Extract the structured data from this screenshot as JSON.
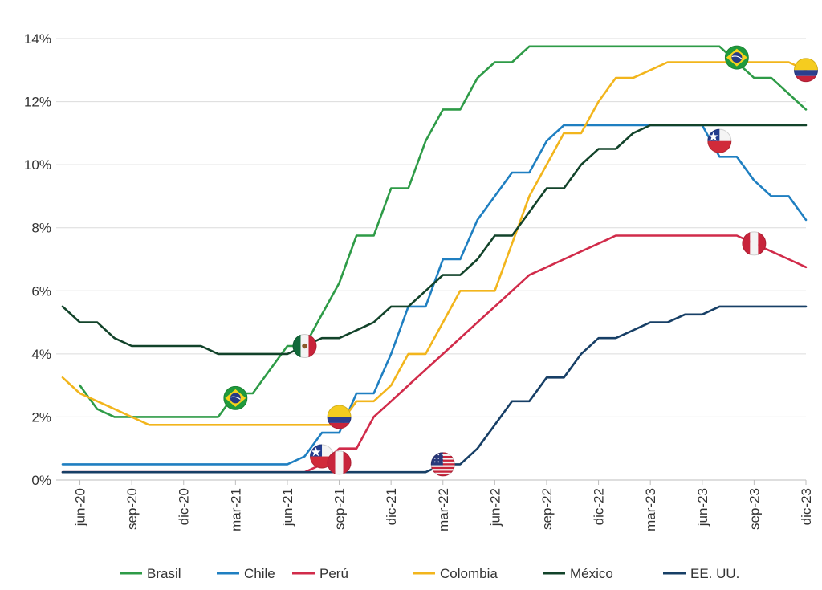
{
  "chart_data": {
    "type": "line",
    "title": "",
    "xlabel": "",
    "ylabel": "",
    "ylim": [
      0,
      14
    ],
    "y_ticks": [
      "0%",
      "2%",
      "4%",
      "6%",
      "8%",
      "10%",
      "12%",
      "14%"
    ],
    "y_tick_values": [
      0,
      2,
      4,
      6,
      8,
      10,
      12,
      14
    ],
    "x_range": [
      "2020-05",
      "2023-12"
    ],
    "x_ticks": [
      "jun-20",
      "sep-20",
      "dic-20",
      "mar-21",
      "jun-21",
      "sep-21",
      "dic-21",
      "mar-22",
      "jun-22",
      "sep-22",
      "dic-22",
      "mar-23",
      "jun-23",
      "sep-23",
      "dic-23"
    ],
    "x_tick_months": [
      "2020-06",
      "2020-09",
      "2020-12",
      "2021-03",
      "2021-06",
      "2021-09",
      "2021-12",
      "2022-03",
      "2022-06",
      "2022-09",
      "2022-12",
      "2023-03",
      "2023-06",
      "2023-09",
      "2023-12"
    ],
    "grid": "horizontal",
    "legend_position": "bottom",
    "series": [
      {
        "name": "Brasil",
        "color": "#2e9b47",
        "flag": "brazil-flag",
        "points": [
          [
            "2020-06",
            3.0
          ],
          [
            "2020-07",
            2.25
          ],
          [
            "2020-08",
            2.0
          ],
          [
            "2020-09",
            2.0
          ],
          [
            "2020-10",
            2.0
          ],
          [
            "2020-11",
            2.0
          ],
          [
            "2020-12",
            2.0
          ],
          [
            "2021-01",
            2.0
          ],
          [
            "2021-02",
            2.0
          ],
          [
            "2021-03",
            2.75
          ],
          [
            "2021-04",
            2.75
          ],
          [
            "2021-05",
            3.5
          ],
          [
            "2021-06",
            4.25
          ],
          [
            "2021-07",
            4.25
          ],
          [
            "2021-08",
            5.25
          ],
          [
            "2021-09",
            6.25
          ],
          [
            "2021-10",
            7.75
          ],
          [
            "2021-11",
            7.75
          ],
          [
            "2021-12",
            9.25
          ],
          [
            "2022-01",
            9.25
          ],
          [
            "2022-02",
            10.75
          ],
          [
            "2022-03",
            11.75
          ],
          [
            "2022-04",
            11.75
          ],
          [
            "2022-05",
            12.75
          ],
          [
            "2022-06",
            13.25
          ],
          [
            "2022-07",
            13.25
          ],
          [
            "2022-08",
            13.75
          ],
          [
            "2022-09",
            13.75
          ],
          [
            "2022-10",
            13.75
          ],
          [
            "2022-11",
            13.75
          ],
          [
            "2022-12",
            13.75
          ],
          [
            "2023-01",
            13.75
          ],
          [
            "2023-02",
            13.75
          ],
          [
            "2023-03",
            13.75
          ],
          [
            "2023-04",
            13.75
          ],
          [
            "2023-05",
            13.75
          ],
          [
            "2023-06",
            13.75
          ],
          [
            "2023-07",
            13.75
          ],
          [
            "2023-08",
            13.25
          ],
          [
            "2023-09",
            12.75
          ],
          [
            "2023-10",
            12.75
          ],
          [
            "2023-11",
            12.25
          ],
          [
            "2023-12",
            11.75
          ]
        ]
      },
      {
        "name": "Chile",
        "color": "#1f7fc1",
        "flag": "chile-flag",
        "points": [
          [
            "2020-05",
            0.5
          ],
          [
            "2020-06",
            0.5
          ],
          [
            "2020-07",
            0.5
          ],
          [
            "2020-08",
            0.5
          ],
          [
            "2020-09",
            0.5
          ],
          [
            "2020-10",
            0.5
          ],
          [
            "2020-11",
            0.5
          ],
          [
            "2020-12",
            0.5
          ],
          [
            "2021-01",
            0.5
          ],
          [
            "2021-02",
            0.5
          ],
          [
            "2021-03",
            0.5
          ],
          [
            "2021-04",
            0.5
          ],
          [
            "2021-05",
            0.5
          ],
          [
            "2021-06",
            0.5
          ],
          [
            "2021-07",
            0.75
          ],
          [
            "2021-08",
            1.5
          ],
          [
            "2021-09",
            1.5
          ],
          [
            "2021-10",
            2.75
          ],
          [
            "2021-11",
            2.75
          ],
          [
            "2021-12",
            4.0
          ],
          [
            "2022-01",
            5.5
          ],
          [
            "2022-02",
            5.5
          ],
          [
            "2022-03",
            7.0
          ],
          [
            "2022-04",
            7.0
          ],
          [
            "2022-05",
            8.25
          ],
          [
            "2022-06",
            9.0
          ],
          [
            "2022-07",
            9.75
          ],
          [
            "2022-08",
            9.75
          ],
          [
            "2022-09",
            10.75
          ],
          [
            "2022-10",
            11.25
          ],
          [
            "2022-11",
            11.25
          ],
          [
            "2022-12",
            11.25
          ],
          [
            "2023-01",
            11.25
          ],
          [
            "2023-02",
            11.25
          ],
          [
            "2023-03",
            11.25
          ],
          [
            "2023-04",
            11.25
          ],
          [
            "2023-05",
            11.25
          ],
          [
            "2023-06",
            11.25
          ],
          [
            "2023-07",
            10.25
          ],
          [
            "2023-08",
            10.25
          ],
          [
            "2023-09",
            9.5
          ],
          [
            "2023-10",
            9.0
          ],
          [
            "2023-11",
            9.0
          ],
          [
            "2023-12",
            8.25
          ]
        ]
      },
      {
        "name": "Perú",
        "color": "#d12b4a",
        "flag": "peru-flag",
        "points": [
          [
            "2020-05",
            0.25
          ],
          [
            "2020-06",
            0.25
          ],
          [
            "2020-07",
            0.25
          ],
          [
            "2020-08",
            0.25
          ],
          [
            "2020-09",
            0.25
          ],
          [
            "2020-10",
            0.25
          ],
          [
            "2020-11",
            0.25
          ],
          [
            "2020-12",
            0.25
          ],
          [
            "2021-01",
            0.25
          ],
          [
            "2021-02",
            0.25
          ],
          [
            "2021-03",
            0.25
          ],
          [
            "2021-04",
            0.25
          ],
          [
            "2021-05",
            0.25
          ],
          [
            "2021-06",
            0.25
          ],
          [
            "2021-07",
            0.25
          ],
          [
            "2021-08",
            0.5
          ],
          [
            "2021-09",
            1.0
          ],
          [
            "2021-10",
            1.0
          ],
          [
            "2021-11",
            2.0
          ],
          [
            "2021-12",
            2.5
          ],
          [
            "2022-01",
            3.0
          ],
          [
            "2022-02",
            3.5
          ],
          [
            "2022-03",
            4.0
          ],
          [
            "2022-04",
            4.5
          ],
          [
            "2022-05",
            5.0
          ],
          [
            "2022-06",
            5.5
          ],
          [
            "2022-07",
            6.0
          ],
          [
            "2022-08",
            6.5
          ],
          [
            "2022-09",
            6.75
          ],
          [
            "2022-10",
            7.0
          ],
          [
            "2022-11",
            7.25
          ],
          [
            "2022-12",
            7.5
          ],
          [
            "2023-01",
            7.75
          ],
          [
            "2023-02",
            7.75
          ],
          [
            "2023-03",
            7.75
          ],
          [
            "2023-04",
            7.75
          ],
          [
            "2023-05",
            7.75
          ],
          [
            "2023-06",
            7.75
          ],
          [
            "2023-07",
            7.75
          ],
          [
            "2023-08",
            7.75
          ],
          [
            "2023-09",
            7.5
          ],
          [
            "2023-10",
            7.25
          ],
          [
            "2023-11",
            7.0
          ],
          [
            "2023-12",
            6.75
          ]
        ]
      },
      {
        "name": "Colombia",
        "color": "#f2b51c",
        "flag": "colombia-flag",
        "points": [
          [
            "2020-05",
            3.25
          ],
          [
            "2020-06",
            2.75
          ],
          [
            "2020-07",
            2.5
          ],
          [
            "2020-08",
            2.25
          ],
          [
            "2020-09",
            2.0
          ],
          [
            "2020-10",
            1.75
          ],
          [
            "2020-11",
            1.75
          ],
          [
            "2020-12",
            1.75
          ],
          [
            "2021-01",
            1.75
          ],
          [
            "2021-02",
            1.75
          ],
          [
            "2021-03",
            1.75
          ],
          [
            "2021-04",
            1.75
          ],
          [
            "2021-05",
            1.75
          ],
          [
            "2021-06",
            1.75
          ],
          [
            "2021-07",
            1.75
          ],
          [
            "2021-08",
            1.75
          ],
          [
            "2021-09",
            1.75
          ],
          [
            "2021-10",
            2.5
          ],
          [
            "2021-11",
            2.5
          ],
          [
            "2021-12",
            3.0
          ],
          [
            "2022-01",
            4.0
          ],
          [
            "2022-02",
            4.0
          ],
          [
            "2022-03",
            5.0
          ],
          [
            "2022-04",
            6.0
          ],
          [
            "2022-05",
            6.0
          ],
          [
            "2022-06",
            6.0
          ],
          [
            "2022-07",
            7.5
          ],
          [
            "2022-08",
            9.0
          ],
          [
            "2022-09",
            10.0
          ],
          [
            "2022-10",
            11.0
          ],
          [
            "2022-11",
            11.0
          ],
          [
            "2022-12",
            12.0
          ],
          [
            "2023-01",
            12.75
          ],
          [
            "2023-02",
            12.75
          ],
          [
            "2023-03",
            13.0
          ],
          [
            "2023-04",
            13.25
          ],
          [
            "2023-05",
            13.25
          ],
          [
            "2023-06",
            13.25
          ],
          [
            "2023-07",
            13.25
          ],
          [
            "2023-08",
            13.25
          ],
          [
            "2023-09",
            13.25
          ],
          [
            "2023-10",
            13.25
          ],
          [
            "2023-11",
            13.25
          ],
          [
            "2023-12",
            13.0
          ]
        ]
      },
      {
        "name": "México",
        "color": "#12432a",
        "flag": "mexico-flag",
        "points": [
          [
            "2020-05",
            5.5
          ],
          [
            "2020-06",
            5.0
          ],
          [
            "2020-07",
            5.0
          ],
          [
            "2020-08",
            4.5
          ],
          [
            "2020-09",
            4.25
          ],
          [
            "2020-10",
            4.25
          ],
          [
            "2020-11",
            4.25
          ],
          [
            "2020-12",
            4.25
          ],
          [
            "2021-01",
            4.25
          ],
          [
            "2021-02",
            4.0
          ],
          [
            "2021-03",
            4.0
          ],
          [
            "2021-04",
            4.0
          ],
          [
            "2021-05",
            4.0
          ],
          [
            "2021-06",
            4.0
          ],
          [
            "2021-07",
            4.25
          ],
          [
            "2021-08",
            4.5
          ],
          [
            "2021-09",
            4.5
          ],
          [
            "2021-10",
            4.75
          ],
          [
            "2021-11",
            5.0
          ],
          [
            "2021-12",
            5.5
          ],
          [
            "2022-01",
            5.5
          ],
          [
            "2022-02",
            6.0
          ],
          [
            "2022-03",
            6.5
          ],
          [
            "2022-04",
            6.5
          ],
          [
            "2022-05",
            7.0
          ],
          [
            "2022-06",
            7.75
          ],
          [
            "2022-07",
            7.75
          ],
          [
            "2022-08",
            8.5
          ],
          [
            "2022-09",
            9.25
          ],
          [
            "2022-10",
            9.25
          ],
          [
            "2022-11",
            10.0
          ],
          [
            "2022-12",
            10.5
          ],
          [
            "2023-01",
            10.5
          ],
          [
            "2023-02",
            11.0
          ],
          [
            "2023-03",
            11.25
          ],
          [
            "2023-04",
            11.25
          ],
          [
            "2023-05",
            11.25
          ],
          [
            "2023-06",
            11.25
          ],
          [
            "2023-07",
            11.25
          ],
          [
            "2023-08",
            11.25
          ],
          [
            "2023-09",
            11.25
          ],
          [
            "2023-10",
            11.25
          ],
          [
            "2023-11",
            11.25
          ],
          [
            "2023-12",
            11.25
          ]
        ]
      },
      {
        "name": "EE. UU.",
        "color": "#173f66",
        "flag": "usa-flag",
        "points": [
          [
            "2020-05",
            0.25
          ],
          [
            "2020-06",
            0.25
          ],
          [
            "2020-07",
            0.25
          ],
          [
            "2020-08",
            0.25
          ],
          [
            "2020-09",
            0.25
          ],
          [
            "2020-10",
            0.25
          ],
          [
            "2020-11",
            0.25
          ],
          [
            "2020-12",
            0.25
          ],
          [
            "2021-01",
            0.25
          ],
          [
            "2021-02",
            0.25
          ],
          [
            "2021-03",
            0.25
          ],
          [
            "2021-04",
            0.25
          ],
          [
            "2021-05",
            0.25
          ],
          [
            "2021-06",
            0.25
          ],
          [
            "2021-07",
            0.25
          ],
          [
            "2021-08",
            0.25
          ],
          [
            "2021-09",
            0.25
          ],
          [
            "2021-10",
            0.25
          ],
          [
            "2021-11",
            0.25
          ],
          [
            "2021-12",
            0.25
          ],
          [
            "2022-01",
            0.25
          ],
          [
            "2022-02",
            0.25
          ],
          [
            "2022-03",
            0.5
          ],
          [
            "2022-04",
            0.5
          ],
          [
            "2022-05",
            1.0
          ],
          [
            "2022-06",
            1.75
          ],
          [
            "2022-07",
            2.5
          ],
          [
            "2022-08",
            2.5
          ],
          [
            "2022-09",
            3.25
          ],
          [
            "2022-10",
            3.25
          ],
          [
            "2022-11",
            4.0
          ],
          [
            "2022-12",
            4.5
          ],
          [
            "2023-01",
            4.5
          ],
          [
            "2023-02",
            4.75
          ],
          [
            "2023-03",
            5.0
          ],
          [
            "2023-04",
            5.0
          ],
          [
            "2023-05",
            5.25
          ],
          [
            "2023-06",
            5.25
          ],
          [
            "2023-07",
            5.5
          ],
          [
            "2023-08",
            5.5
          ],
          [
            "2023-09",
            5.5
          ],
          [
            "2023-10",
            5.5
          ],
          [
            "2023-11",
            5.5
          ],
          [
            "2023-12",
            5.5
          ]
        ]
      }
    ],
    "flags": [
      {
        "icon": "brazil-flag",
        "month": "2021-03",
        "value": 2.6
      },
      {
        "icon": "brazil-flag",
        "month": "2023-08",
        "value": 13.4
      },
      {
        "icon": "colombia-flag",
        "month": "2021-09",
        "value": 2.0
      },
      {
        "icon": "colombia-flag",
        "month": "2023-12",
        "value": 13.0
      },
      {
        "icon": "mexico-flag",
        "month": "2021-07",
        "value": 4.25
      },
      {
        "icon": "chile-flag",
        "month": "2021-08",
        "value": 0.75
      },
      {
        "icon": "chile-flag",
        "month": "2023-07",
        "value": 10.75
      },
      {
        "icon": "peru-flag",
        "month": "2021-09",
        "value": 0.55
      },
      {
        "icon": "peru-flag",
        "month": "2023-09",
        "value": 7.5
      },
      {
        "icon": "usa-flag",
        "month": "2022-03",
        "value": 0.5
      }
    ]
  }
}
